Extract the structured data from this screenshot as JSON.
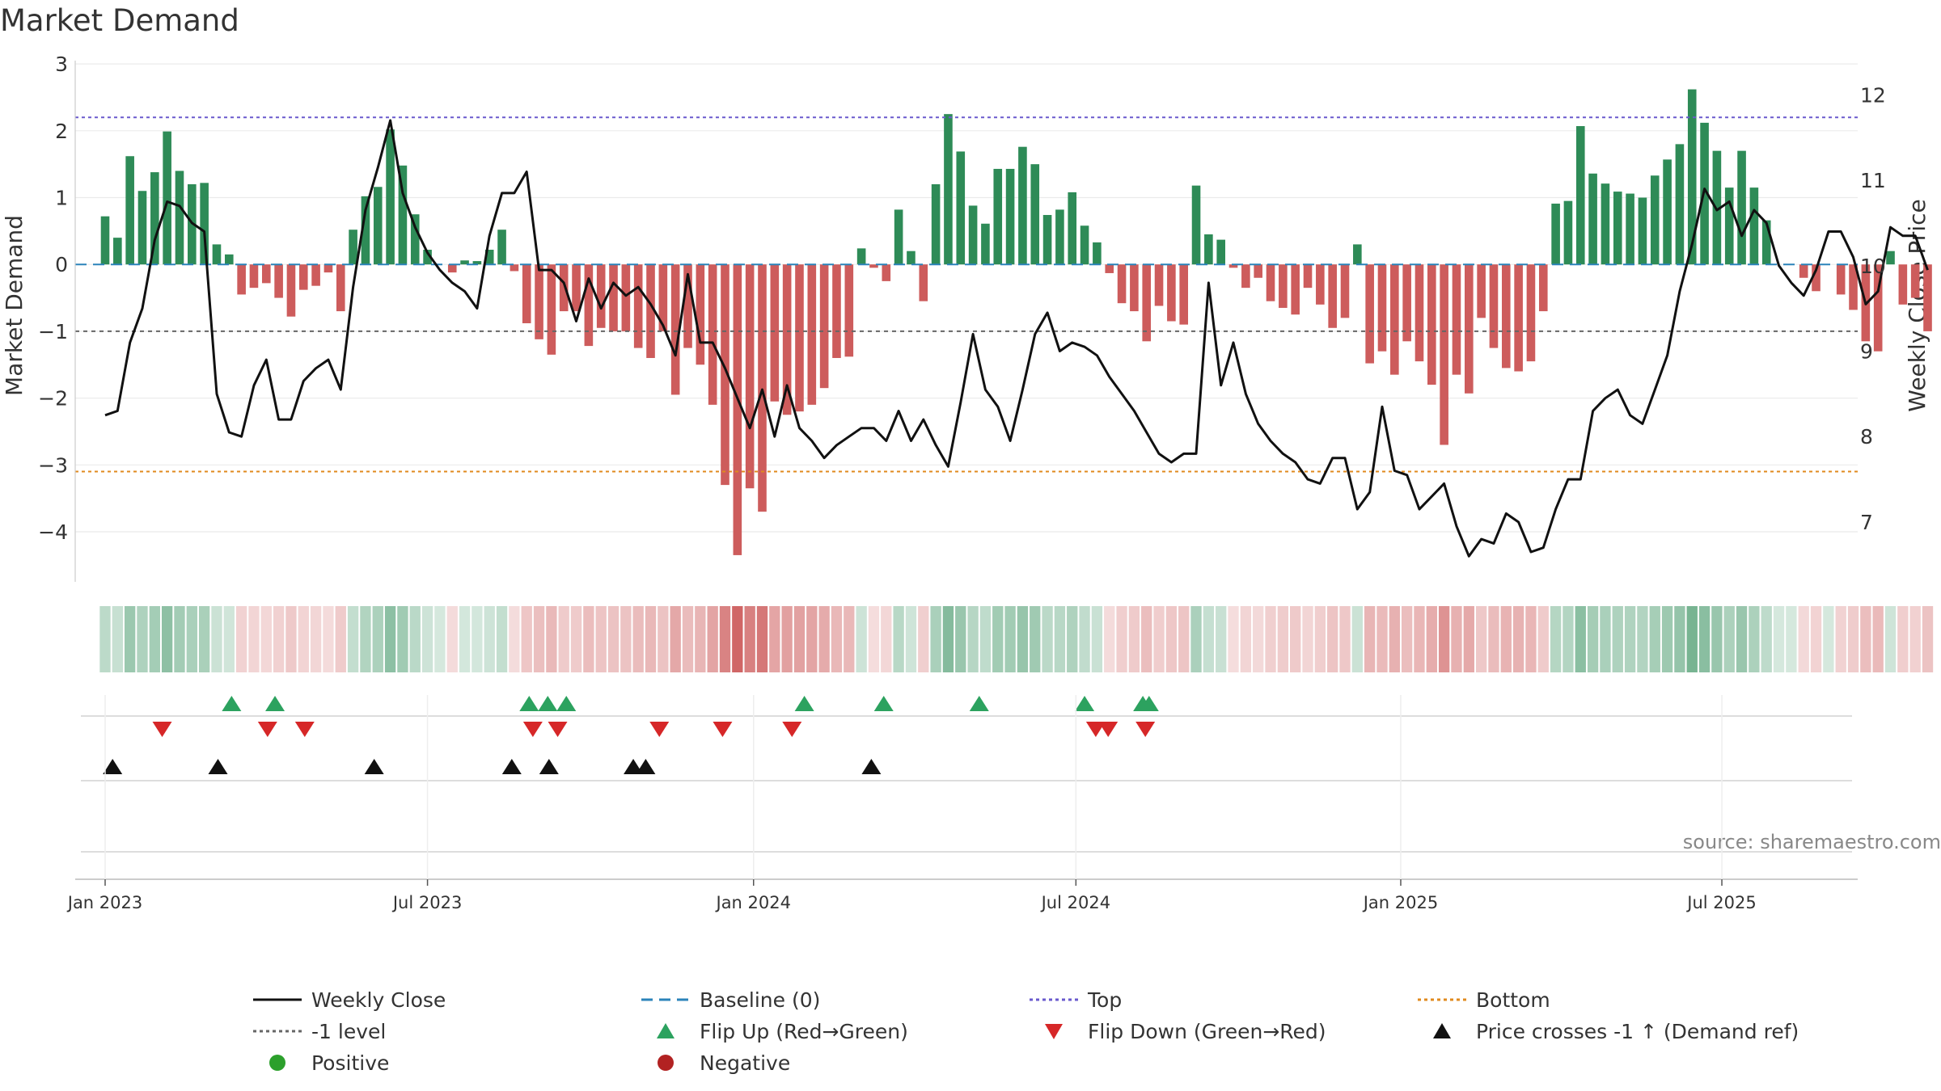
{
  "chart_data": {
    "type": "bar",
    "title": "Market Demand",
    "ylabel_left": "Market Demand",
    "ylabel_right": "Weekly Close Price",
    "source": "source: sharemaestro.com",
    "weeks_start": "2023-01-02",
    "ylim_left": [
      -4.75,
      3.05
    ],
    "ylim_right": [
      6.3,
      12.4
    ],
    "yticks_left": [
      -4,
      -3,
      -2,
      -1,
      0,
      1,
      2,
      3
    ],
    "yticks_right": [
      7,
      8,
      9,
      10,
      11,
      12
    ],
    "x_ticks": [
      {
        "label": "Jan 2023",
        "week": 0
      },
      {
        "label": "Jul 2023",
        "week": 26
      },
      {
        "label": "Jan 2024",
        "week": 52.3
      },
      {
        "label": "Jul 2024",
        "week": 78.3
      },
      {
        "label": "Jan 2025",
        "week": 104.5
      },
      {
        "label": "Jul 2025",
        "week": 130.4
      }
    ],
    "reference_lines": {
      "top": 2.2,
      "bottom": -3.1,
      "minus_one": -1,
      "baseline": 0
    },
    "demand": [
      0.72,
      0.4,
      1.62,
      1.1,
      1.38,
      1.99,
      1.4,
      1.2,
      1.22,
      0.3,
      0.15,
      -0.45,
      -0.35,
      -0.28,
      -0.5,
      -0.78,
      -0.38,
      -0.32,
      -0.12,
      -0.7,
      0.52,
      1.02,
      1.16,
      2.02,
      1.48,
      0.75,
      0.22,
      0.0,
      -0.12,
      0.06,
      0.05,
      0.22,
      0.52,
      -0.1,
      -0.88,
      -1.12,
      -1.35,
      -0.7,
      -0.7,
      -1.22,
      -0.95,
      -1.0,
      -1.0,
      -1.25,
      -1.4,
      -1.0,
      -1.95,
      -1.25,
      -1.5,
      -2.1,
      -3.3,
      -4.35,
      -3.35,
      -3.7,
      -2.05,
      -2.25,
      -2.2,
      -2.1,
      -1.85,
      -1.4,
      -1.38,
      0.24,
      -0.05,
      -0.25,
      0.82,
      0.2,
      -0.55,
      1.2,
      2.25,
      1.69,
      0.88,
      0.61,
      1.43,
      1.43,
      1.76,
      1.5,
      0.74,
      0.82,
      1.08,
      0.58,
      0.33,
      -0.13,
      -0.58,
      -0.7,
      -1.15,
      -0.62,
      -0.85,
      -0.9,
      1.18,
      0.45,
      0.37,
      -0.05,
      -0.35,
      -0.2,
      -0.55,
      -0.65,
      -0.75,
      -0.35,
      -0.6,
      -0.95,
      -0.8,
      0.3,
      -1.48,
      -1.3,
      -1.65,
      -1.15,
      -1.45,
      -1.8,
      -2.7,
      -1.65,
      -1.93,
      -0.8,
      -1.25,
      -1.55,
      -1.6,
      -1.45,
      -0.7,
      0.91,
      0.95,
      2.07,
      1.36,
      1.21,
      1.09,
      1.06,
      1.0,
      1.33,
      1.57,
      1.8,
      2.62,
      2.12,
      1.7,
      1.15,
      1.7,
      1.15,
      0.66,
      0.0,
      0.0,
      -0.2,
      -0.4,
      0.0,
      -0.45,
      -0.68,
      -1.15,
      -1.3,
      0.2,
      -0.6,
      -0.5,
      -1.0
    ],
    "weekly_close": [
      8.25,
      8.3,
      9.1,
      9.5,
      10.3,
      10.75,
      10.7,
      10.5,
      10.4,
      8.5,
      8.05,
      8.0,
      8.6,
      8.9,
      8.2,
      8.2,
      8.65,
      8.8,
      8.9,
      8.55,
      9.75,
      10.65,
      11.15,
      11.7,
      10.85,
      10.45,
      10.15,
      9.95,
      9.8,
      9.7,
      9.5,
      10.35,
      10.85,
      10.85,
      11.1,
      9.95,
      9.95,
      9.8,
      9.35,
      9.85,
      9.5,
      9.8,
      9.65,
      9.75,
      9.55,
      9.3,
      8.95,
      9.9,
      9.1,
      9.1,
      8.8,
      8.45,
      8.1,
      8.55,
      8.0,
      8.6,
      8.1,
      7.95,
      7.75,
      7.9,
      8.0,
      8.1,
      8.1,
      7.95,
      8.3,
      7.95,
      8.2,
      7.9,
      7.65,
      8.4,
      9.2,
      8.55,
      8.35,
      7.95,
      8.55,
      9.2,
      9.45,
      9.0,
      9.1,
      9.05,
      8.95,
      8.7,
      8.5,
      8.3,
      8.05,
      7.8,
      7.7,
      7.8,
      7.8,
      9.8,
      8.6,
      9.1,
      8.5,
      8.15,
      7.95,
      7.8,
      7.7,
      7.5,
      7.45,
      7.75,
      7.75,
      7.15,
      7.35,
      8.35,
      7.6,
      7.55,
      7.15,
      7.3,
      7.45,
      6.95,
      6.6,
      6.8,
      6.75,
      7.1,
      7.0,
      6.65,
      6.7,
      7.15,
      7.5,
      7.5,
      8.3,
      8.45,
      8.55,
      8.25,
      8.15,
      8.55,
      8.95,
      9.7,
      10.25,
      10.9,
      10.65,
      10.75,
      10.35,
      10.65,
      10.5,
      10.0,
      9.8,
      9.65,
      9.95,
      10.4,
      10.4,
      10.1,
      9.55,
      9.7,
      10.45,
      10.35,
      10.35,
      9.95
    ],
    "signals": {
      "flip_up": [
        10.2,
        13.7,
        34.2,
        35.7,
        37.2,
        56.4,
        62.8,
        70.5,
        79.0,
        83.7,
        84.2
      ],
      "flip_down": [
        4.6,
        13.1,
        16.1,
        34.5,
        36.5,
        44.7,
        49.8,
        55.4,
        79.9,
        80.9,
        83.9
      ],
      "price_cross_up": [
        0.6,
        9.1,
        21.7,
        32.8,
        35.8,
        42.6,
        43.6,
        61.8
      ]
    },
    "legend": [
      {
        "label": "Weekly Close",
        "kind": "line",
        "color": "#111111",
        "dash": "none"
      },
      {
        "label": "Baseline (0)",
        "kind": "line",
        "color": "#2b83ba",
        "dash": "14,8"
      },
      {
        "label": "Top",
        "kind": "line",
        "color": "#6a5acd",
        "dash": "4,4"
      },
      {
        "label": "Bottom",
        "kind": "line",
        "color": "#e08a1e",
        "dash": "4,4"
      },
      {
        "label": "-1 level",
        "kind": "line",
        "color": "#666666",
        "dash": "4,4"
      },
      {
        "label": "Flip Up (Red→Green)",
        "kind": "tri-up",
        "color": "#2ca25f"
      },
      {
        "label": "Flip Down (Green→Red)",
        "kind": "tri-down",
        "color": "#d62728"
      },
      {
        "label": "Price crosses -1 ↑ (Demand ref)",
        "kind": "tri-up",
        "color": "#111111"
      },
      {
        "label": "Positive",
        "kind": "dot",
        "color": "#2ca02c"
      },
      {
        "label": "Negative",
        "kind": "dot",
        "color": "#b22222"
      }
    ],
    "colors": {
      "positive": "#2e8b57",
      "negative": "#cd5c5c",
      "close": "#111111"
    }
  }
}
